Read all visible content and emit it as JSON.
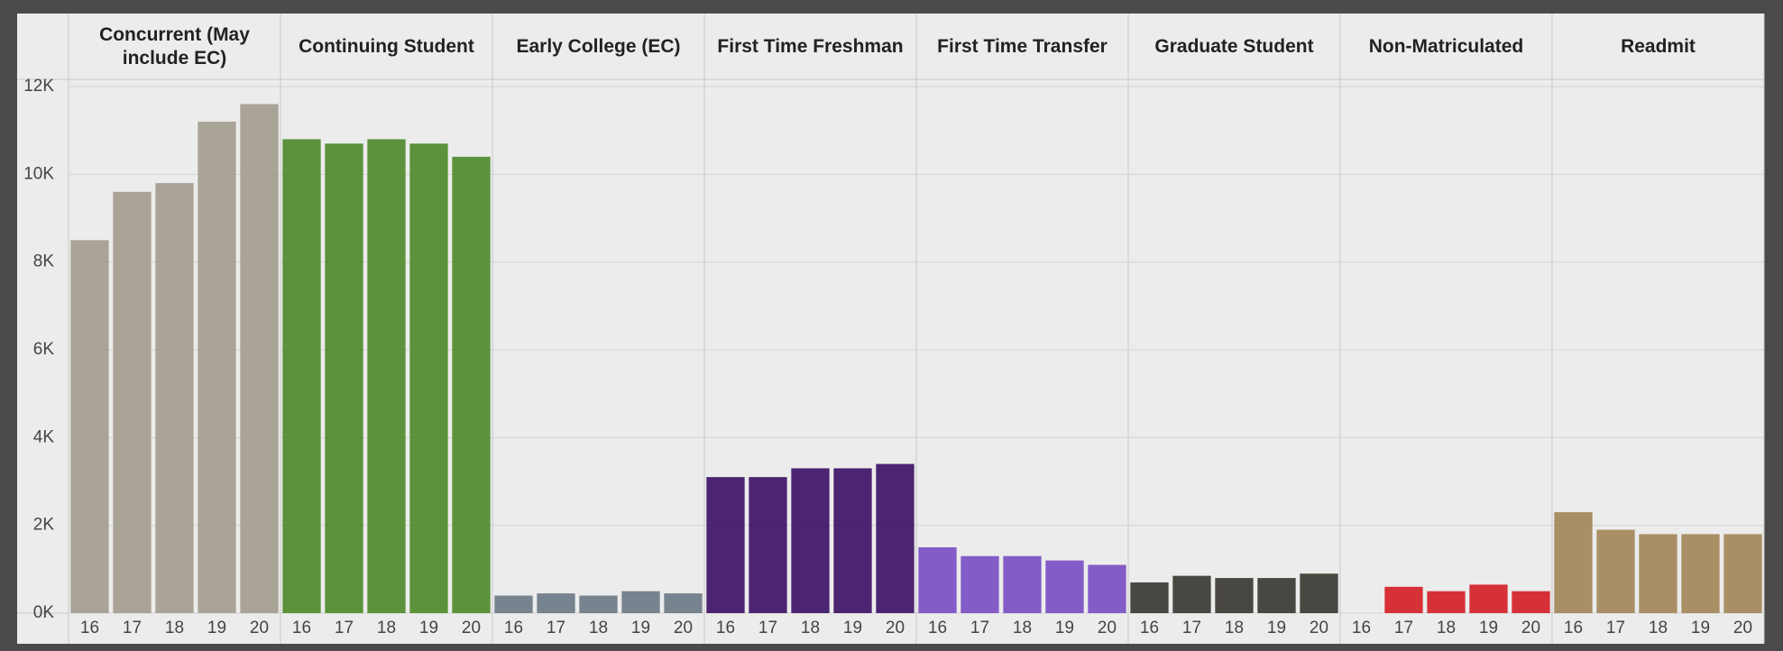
{
  "chart_data": {
    "type": "bar",
    "categories": [
      "16",
      "17",
      "18",
      "19",
      "20"
    ],
    "facets": [
      {
        "name": "Concurrent (May include EC)",
        "color": "#a39d8f",
        "values": [
          8500,
          9600,
          9800,
          11200,
          11600
        ]
      },
      {
        "name": "Continuing Student",
        "color": "#4f8a2b",
        "values": [
          10800,
          10700,
          10800,
          10700,
          10400
        ]
      },
      {
        "name": "Early College (EC)",
        "color": "#6d7a87",
        "values": [
          400,
          450,
          400,
          500,
          450
        ]
      },
      {
        "name": "First Time Freshman",
        "color": "#3d1466",
        "values": [
          3100,
          3100,
          3300,
          3300,
          3400
        ]
      },
      {
        "name": "First Time Transfer",
        "color": "#7b4fc4",
        "values": [
          1500,
          1300,
          1300,
          1200,
          1100
        ]
      },
      {
        "name": "Graduate Student",
        "color": "#3b3832",
        "values": [
          700,
          850,
          800,
          800,
          900
        ]
      },
      {
        "name": "Non-Matriculated",
        "color": "#d42127",
        "values": [
          null,
          600,
          500,
          650,
          500
        ]
      },
      {
        "name": "Readmit",
        "color": "#a3875a",
        "values": [
          2300,
          1900,
          1800,
          1800,
          1800
        ]
      }
    ],
    "ylim": [
      0,
      12000
    ],
    "yticks": [
      {
        "value": 0,
        "label": "0K"
      },
      {
        "value": 2000,
        "label": "2K"
      },
      {
        "value": 4000,
        "label": "4K"
      },
      {
        "value": 6000,
        "label": "6K"
      },
      {
        "value": 8000,
        "label": "8K"
      },
      {
        "value": 10000,
        "label": "10K"
      },
      {
        "value": 12000,
        "label": "12K"
      }
    ],
    "grid": true
  }
}
